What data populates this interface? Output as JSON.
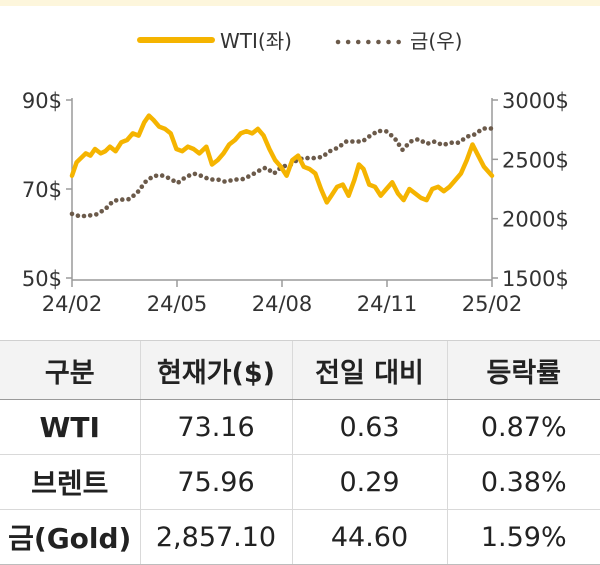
{
  "legend": {
    "wti_label": "WTI(좌)",
    "gold_label": "금(우)"
  },
  "chart_data": {
    "type": "line",
    "x_tick_labels": [
      "24/02",
      "24/05",
      "24/08",
      "24/11",
      "25/02"
    ],
    "x_range": [
      "2024-02-01",
      "2025-02-01"
    ],
    "y_left": {
      "ticks": [
        "90$",
        "70$",
        "50$"
      ],
      "range": [
        50,
        90
      ]
    },
    "y_right": {
      "ticks": [
        "3000$",
        "2500$",
        "2000$",
        "1500$"
      ],
      "range": [
        1500,
        3000
      ]
    },
    "grid": false,
    "legend_position": "top",
    "series": [
      {
        "name": "WTI(좌)",
        "axis": "left",
        "style": "solid",
        "color": "#f5b400",
        "points": [
          [
            "2024-02-01",
            73
          ],
          [
            "2024-02-05",
            76
          ],
          [
            "2024-02-09",
            77
          ],
          [
            "2024-02-13",
            78
          ],
          [
            "2024-02-17",
            77.5
          ],
          [
            "2024-02-21",
            79
          ],
          [
            "2024-02-26",
            78
          ],
          [
            "2024-03-01",
            78.5
          ],
          [
            "2024-03-05",
            79.5
          ],
          [
            "2024-03-10",
            78.5
          ],
          [
            "2024-03-15",
            80.5
          ],
          [
            "2024-03-20",
            81
          ],
          [
            "2024-03-25",
            82.5
          ],
          [
            "2024-03-30",
            82
          ],
          [
            "2024-04-04",
            85
          ],
          [
            "2024-04-08",
            86.5
          ],
          [
            "2024-04-12",
            85.5
          ],
          [
            "2024-04-17",
            84
          ],
          [
            "2024-04-22",
            83.5
          ],
          [
            "2024-04-27",
            82.5
          ],
          [
            "2024-05-02",
            79
          ],
          [
            "2024-05-07",
            78.5
          ],
          [
            "2024-05-12",
            79.5
          ],
          [
            "2024-05-17",
            79
          ],
          [
            "2024-05-22",
            78
          ],
          [
            "2024-05-28",
            79.5
          ],
          [
            "2024-06-02",
            75.5
          ],
          [
            "2024-06-07",
            76.5
          ],
          [
            "2024-06-12",
            78
          ],
          [
            "2024-06-17",
            80
          ],
          [
            "2024-06-22",
            81
          ],
          [
            "2024-06-27",
            82.5
          ],
          [
            "2024-07-02",
            83
          ],
          [
            "2024-07-07",
            82.5
          ],
          [
            "2024-07-12",
            83.5
          ],
          [
            "2024-07-17",
            82
          ],
          [
            "2024-07-22",
            79
          ],
          [
            "2024-07-27",
            76.5
          ],
          [
            "2024-08-01",
            75
          ],
          [
            "2024-08-06",
            73
          ],
          [
            "2024-08-11",
            76.5
          ],
          [
            "2024-08-16",
            77.5
          ],
          [
            "2024-08-21",
            75
          ],
          [
            "2024-08-26",
            74.5
          ],
          [
            "2024-08-31",
            73.5
          ],
          [
            "2024-09-05",
            70
          ],
          [
            "2024-09-10",
            67
          ],
          [
            "2024-09-14",
            68.5
          ],
          [
            "2024-09-19",
            70.5
          ],
          [
            "2024-09-24",
            71
          ],
          [
            "2024-09-29",
            68.5
          ],
          [
            "2024-10-04",
            72
          ],
          [
            "2024-10-08",
            75.5
          ],
          [
            "2024-10-12",
            74.5
          ],
          [
            "2024-10-17",
            71
          ],
          [
            "2024-10-22",
            70.5
          ],
          [
            "2024-10-27",
            68.5
          ],
          [
            "2024-11-01",
            70
          ],
          [
            "2024-11-06",
            71.5
          ],
          [
            "2024-11-11",
            69
          ],
          [
            "2024-11-16",
            67.5
          ],
          [
            "2024-11-21",
            70
          ],
          [
            "2024-11-26",
            69
          ],
          [
            "2024-12-01",
            68
          ],
          [
            "2024-12-06",
            67.5
          ],
          [
            "2024-12-11",
            70
          ],
          [
            "2024-12-16",
            70.5
          ],
          [
            "2024-12-21",
            69.5
          ],
          [
            "2024-12-26",
            70.5
          ],
          [
            "2024-12-31",
            72
          ],
          [
            "2025-01-05",
            73.5
          ],
          [
            "2025-01-10",
            76.5
          ],
          [
            "2025-01-15",
            80
          ],
          [
            "2025-01-20",
            77.5
          ],
          [
            "2025-01-25",
            75
          ],
          [
            "2025-02-01",
            73
          ]
        ]
      },
      {
        "name": "금(우)",
        "axis": "right",
        "style": "dotted",
        "color": "#6b5a4a",
        "points": [
          [
            "2024-02-01",
            2040
          ],
          [
            "2024-02-08",
            2020
          ],
          [
            "2024-02-15",
            2025
          ],
          [
            "2024-02-22",
            2035
          ],
          [
            "2024-03-01",
            2080
          ],
          [
            "2024-03-08",
            2150
          ],
          [
            "2024-03-15",
            2160
          ],
          [
            "2024-03-22",
            2165
          ],
          [
            "2024-03-29",
            2220
          ],
          [
            "2024-04-05",
            2310
          ],
          [
            "2024-04-12",
            2360
          ],
          [
            "2024-04-19",
            2365
          ],
          [
            "2024-04-26",
            2340
          ],
          [
            "2024-05-03",
            2300
          ],
          [
            "2024-05-10",
            2350
          ],
          [
            "2024-05-17",
            2380
          ],
          [
            "2024-05-24",
            2360
          ],
          [
            "2024-05-31",
            2330
          ],
          [
            "2024-06-07",
            2330
          ],
          [
            "2024-06-14",
            2310
          ],
          [
            "2024-06-21",
            2330
          ],
          [
            "2024-06-28",
            2330
          ],
          [
            "2024-07-05",
            2360
          ],
          [
            "2024-07-12",
            2400
          ],
          [
            "2024-07-19",
            2430
          ],
          [
            "2024-07-26",
            2380
          ],
          [
            "2024-08-02",
            2440
          ],
          [
            "2024-08-09",
            2450
          ],
          [
            "2024-08-16",
            2500
          ],
          [
            "2024-08-23",
            2510
          ],
          [
            "2024-08-30",
            2510
          ],
          [
            "2024-09-06",
            2520
          ],
          [
            "2024-09-13",
            2570
          ],
          [
            "2024-09-20",
            2600
          ],
          [
            "2024-09-27",
            2650
          ],
          [
            "2024-10-04",
            2650
          ],
          [
            "2024-10-11",
            2650
          ],
          [
            "2024-10-18",
            2700
          ],
          [
            "2024-10-25",
            2740
          ],
          [
            "2024-11-01",
            2735
          ],
          [
            "2024-11-08",
            2680
          ],
          [
            "2024-11-15",
            2580
          ],
          [
            "2024-11-22",
            2650
          ],
          [
            "2024-11-29",
            2670
          ],
          [
            "2024-12-06",
            2630
          ],
          [
            "2024-12-13",
            2650
          ],
          [
            "2024-12-20",
            2620
          ],
          [
            "2024-12-27",
            2640
          ],
          [
            "2025-01-03",
            2640
          ],
          [
            "2025-01-10",
            2690
          ],
          [
            "2025-01-17",
            2710
          ],
          [
            "2025-01-24",
            2760
          ],
          [
            "2025-02-01",
            2760
          ]
        ]
      }
    ]
  },
  "table": {
    "headers": [
      "구분",
      "현재가($)",
      "전일 대비",
      "등락률"
    ],
    "rows": [
      [
        "WTI",
        "73.16",
        "0.63",
        "0.87%"
      ],
      [
        "브렌트",
        "75.96",
        "0.29",
        "0.38%"
      ],
      [
        "금(Gold)",
        "2,857.10",
        "44.60",
        "1.59%"
      ]
    ]
  }
}
